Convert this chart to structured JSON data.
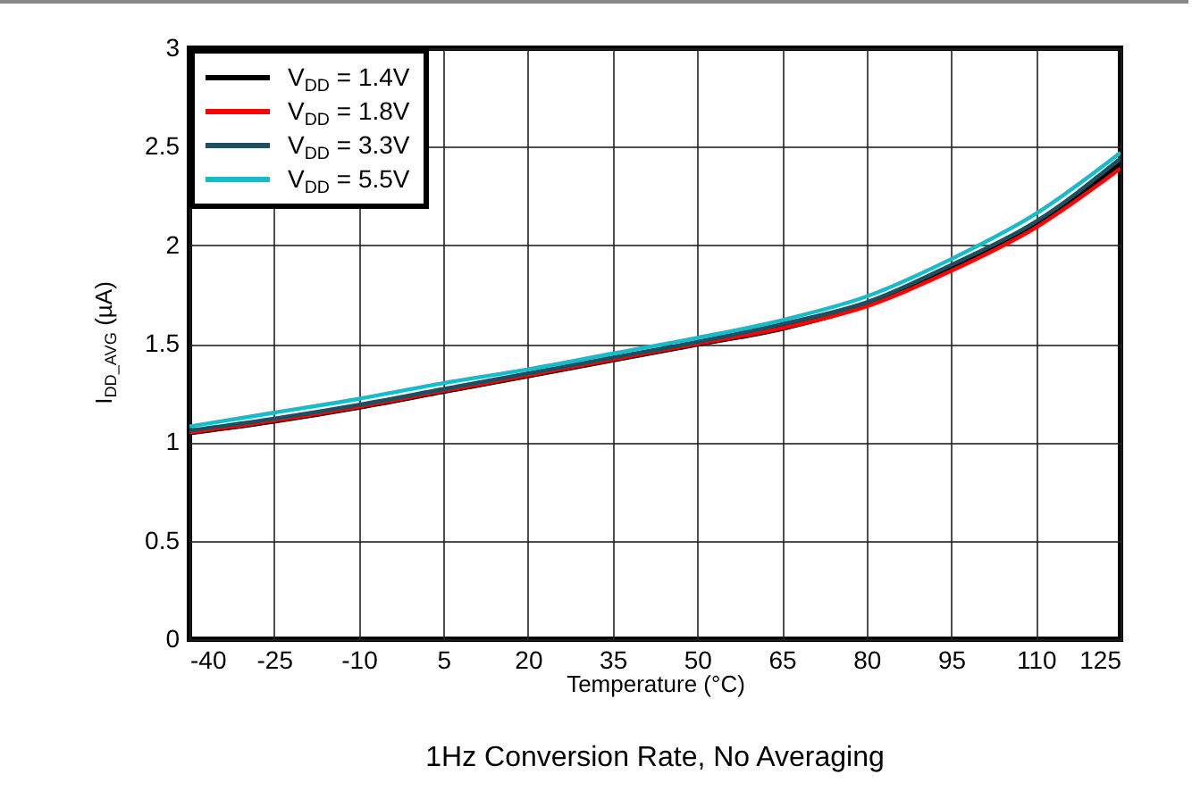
{
  "chart_data": {
    "type": "line",
    "title": "1Hz Conversion Rate, No Averaging",
    "xlabel": "Temperature (°C)",
    "ylabel": "I$_{DD_AVG}$ (µA)",
    "x": [
      -40,
      -25,
      -10,
      5,
      20,
      35,
      50,
      65,
      80,
      95,
      110,
      125
    ],
    "series": [
      {
        "name": "V$_{DD}$ = 1.4V",
        "color": "#000000",
        "values": [
          1.05,
          1.11,
          1.18,
          1.26,
          1.34,
          1.42,
          1.5,
          1.58,
          1.7,
          1.88,
          2.1,
          2.41
        ]
      },
      {
        "name": "V$_{DD}$ = 1.8V",
        "color": "#ff0000",
        "values": [
          1.05,
          1.11,
          1.18,
          1.26,
          1.34,
          1.42,
          1.5,
          1.58,
          1.69,
          1.87,
          2.09,
          2.39
        ]
      },
      {
        "name": "V$_{DD}$ = 3.3V",
        "color": "#1f4e5f",
        "values": [
          1.06,
          1.12,
          1.19,
          1.27,
          1.35,
          1.43,
          1.51,
          1.6,
          1.71,
          1.9,
          2.12,
          2.44
        ]
      },
      {
        "name": "V$_{DD}$ = 5.5V",
        "color": "#17bccb",
        "values": [
          1.08,
          1.15,
          1.22,
          1.3,
          1.37,
          1.45,
          1.53,
          1.62,
          1.74,
          1.93,
          2.16,
          2.47
        ]
      }
    ],
    "xlim": [
      -40,
      125
    ],
    "xticks": [
      -40,
      -25,
      -10,
      5,
      20,
      35,
      50,
      65,
      80,
      95,
      110,
      125
    ],
    "ylim": [
      0,
      3
    ],
    "yticks": [
      0,
      0.5,
      1,
      1.5,
      2,
      2.5,
      3
    ],
    "grid": true,
    "legend": "top left",
    "marker": "none",
    "line_style": "solid"
  }
}
